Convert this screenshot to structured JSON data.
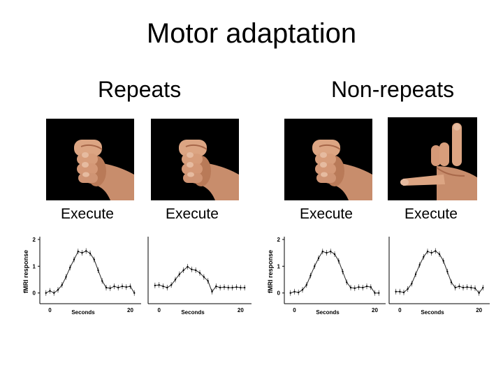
{
  "slide": {
    "title": "Motor adaptation",
    "groups": [
      {
        "heading": "Repeats"
      },
      {
        "heading": "Non-repeats"
      }
    ]
  },
  "photos": [
    {
      "gesture": "fist",
      "label": "Execute"
    },
    {
      "gesture": "fist",
      "label": "Execute"
    },
    {
      "gesture": "fist",
      "label": "Execute"
    },
    {
      "gesture": "pinky-thumb-open-hand",
      "label": "Execute"
    }
  ],
  "colors": {
    "skin": "#d9a07e",
    "skin_shadow": "#a8684a",
    "photo_bg": "#000000"
  },
  "chart_data": [
    {
      "type": "line",
      "ylabel": "fMRI response",
      "xlabel": "Seconds",
      "x_ticks": [
        "0",
        "20"
      ],
      "y_ticks": [
        "0",
        "1",
        "2"
      ],
      "xlim": [
        -2,
        22
      ],
      "ylim": [
        -0.4,
        2
      ],
      "x": [
        -1,
        0,
        1,
        2,
        3,
        4,
        5,
        6,
        7,
        8,
        9,
        10,
        11,
        12,
        13,
        14,
        15,
        16,
        17,
        18,
        19,
        20,
        21
      ],
      "series": [
        {
          "values": [
            0.0,
            0.08,
            0.0,
            0.12,
            0.3,
            0.6,
            0.95,
            1.25,
            1.55,
            1.5,
            1.57,
            1.48,
            1.25,
            0.85,
            0.45,
            0.2,
            0.18,
            0.25,
            0.2,
            0.25,
            0.22,
            0.25,
            0.0
          ]
        }
      ]
    },
    {
      "type": "line",
      "ylabel": "",
      "xlabel": "Seconds",
      "x_ticks": [
        "0",
        "20"
      ],
      "y_ticks": [],
      "xlim": [
        -2,
        22
      ],
      "ylim": [
        -0.4,
        2
      ],
      "x": [
        -1,
        0,
        1,
        2,
        3,
        4,
        5,
        6,
        7,
        8,
        9,
        10,
        11,
        12,
        13,
        14,
        15,
        16,
        17,
        18,
        19,
        20,
        21
      ],
      "series": [
        {
          "values": [
            0.28,
            0.3,
            0.25,
            0.2,
            0.3,
            0.5,
            0.7,
            0.85,
            0.98,
            0.88,
            0.85,
            0.75,
            0.6,
            0.45,
            0.05,
            0.25,
            0.2,
            0.22,
            0.2,
            0.2,
            0.22,
            0.2,
            0.2
          ]
        }
      ]
    },
    {
      "type": "line",
      "ylabel": "fMRI response",
      "xlabel": "Seconds",
      "x_ticks": [
        "0",
        "20"
      ],
      "y_ticks": [
        "0",
        "1",
        "2"
      ],
      "xlim": [
        -2,
        22
      ],
      "ylim": [
        -0.4,
        2
      ],
      "x": [
        -1,
        0,
        1,
        2,
        3,
        4,
        5,
        6,
        7,
        8,
        9,
        10,
        11,
        12,
        13,
        14,
        15,
        16,
        17,
        18,
        19,
        20,
        21
      ],
      "series": [
        {
          "values": [
            0.0,
            0.05,
            0.02,
            0.12,
            0.3,
            0.65,
            1.0,
            1.3,
            1.55,
            1.5,
            1.55,
            1.45,
            1.2,
            0.8,
            0.4,
            0.2,
            0.18,
            0.22,
            0.2,
            0.25,
            0.22,
            0.0,
            0.0
          ]
        }
      ]
    },
    {
      "type": "line",
      "ylabel": "",
      "xlabel": "Seconds",
      "x_ticks": [
        "0",
        "20"
      ],
      "y_ticks": [],
      "xlim": [
        -2,
        22
      ],
      "ylim": [
        -0.4,
        2
      ],
      "x": [
        -1,
        0,
        1,
        2,
        3,
        4,
        5,
        6,
        7,
        8,
        9,
        10,
        11,
        12,
        13,
        14,
        15,
        16,
        17,
        18,
        19,
        20,
        21
      ],
      "series": [
        {
          "values": [
            0.05,
            0.05,
            0.02,
            0.15,
            0.35,
            0.7,
            1.05,
            1.35,
            1.55,
            1.5,
            1.57,
            1.45,
            1.2,
            0.8,
            0.4,
            0.2,
            0.25,
            0.2,
            0.22,
            0.2,
            0.18,
            0.0,
            0.2
          ]
        }
      ]
    }
  ]
}
